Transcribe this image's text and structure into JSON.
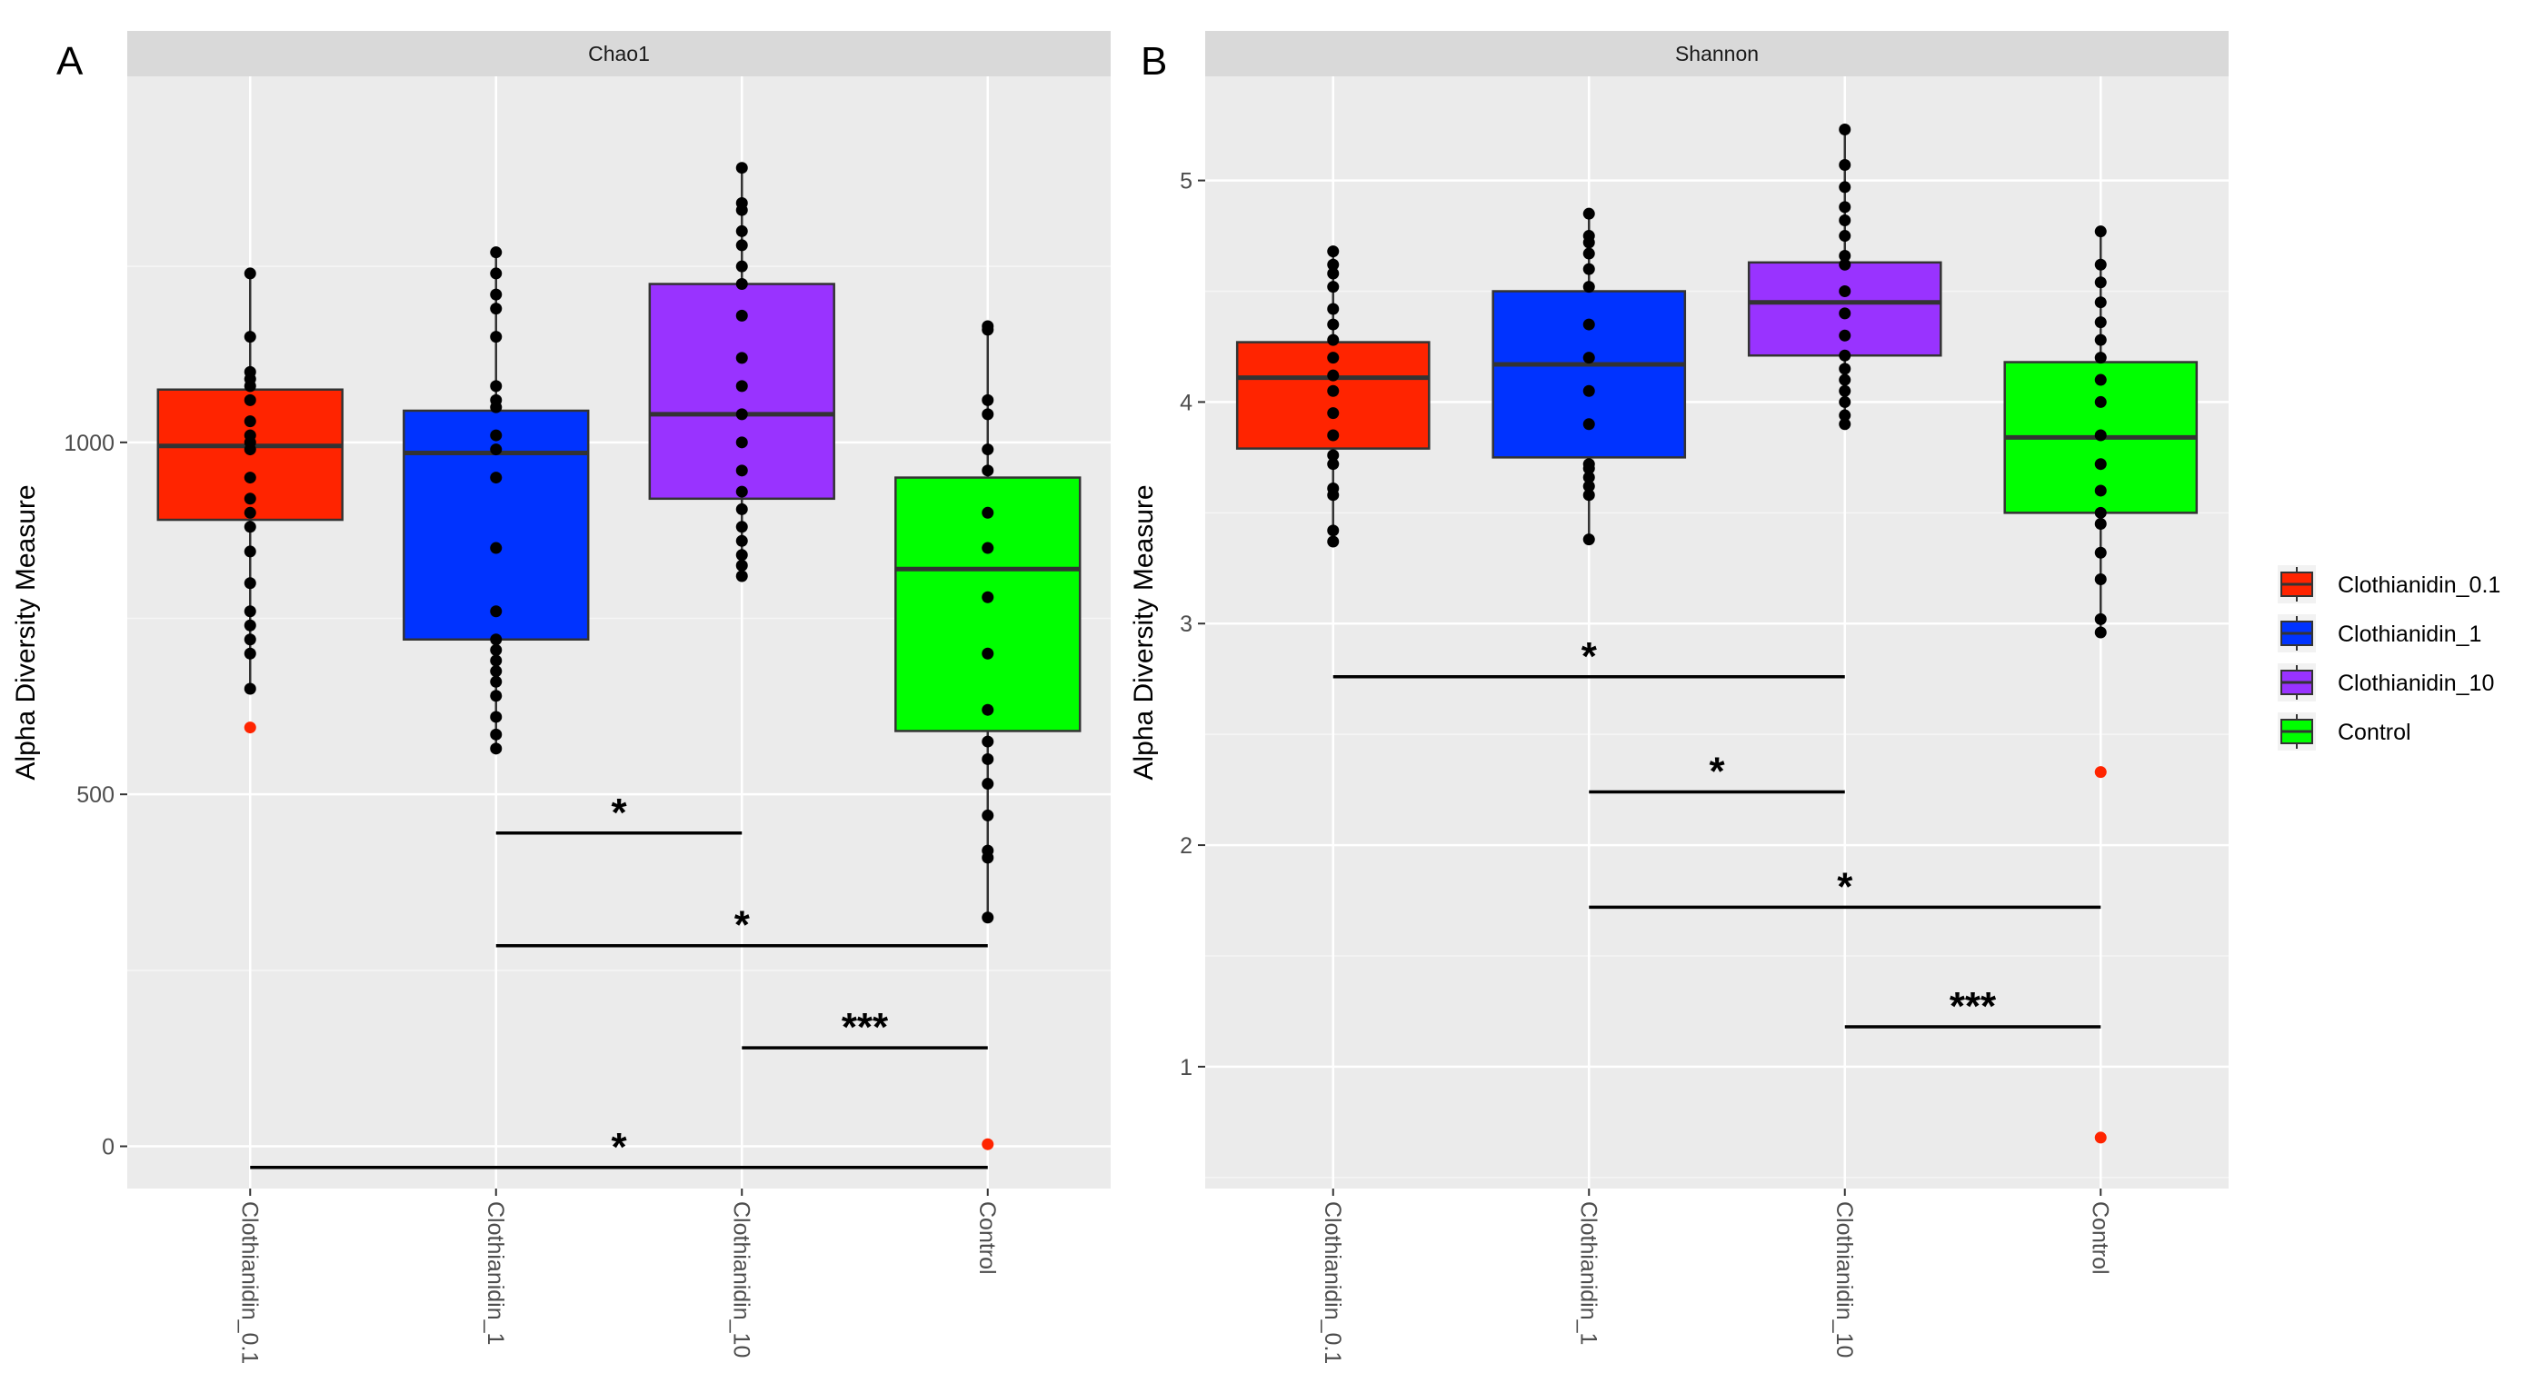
{
  "chart_data": [
    {
      "type": "boxplot",
      "panel_label": "A",
      "title": "Chao1",
      "ylabel": "Alpha Diversity Measure",
      "xlabel": "",
      "ylim": [
        -60,
        1520
      ],
      "yticks": [
        0,
        500,
        1000
      ],
      "grid": true,
      "categories": [
        "Clothianidin_0.1",
        "Clothianidin_1",
        "Clothianidin_10",
        "Control"
      ],
      "boxes": [
        {
          "name": "Clothianidin_0.1",
          "color": "#FF2400",
          "q1": 890,
          "median": 995,
          "q3": 1075,
          "whisker_low": 650,
          "whisker_high": 1240,
          "points": [
            650,
            700,
            720,
            740,
            760,
            800,
            845,
            880,
            900,
            920,
            950,
            990,
            1000,
            1010,
            1030,
            1060,
            1080,
            1090,
            1100,
            1150,
            1240
          ],
          "outliers": [
            595
          ]
        },
        {
          "name": "Clothianidin_1",
          "color": "#0033FF",
          "q1": 720,
          "median": 985,
          "q3": 1045,
          "whisker_low": 565,
          "whisker_high": 1270,
          "points": [
            565,
            585,
            610,
            640,
            660,
            675,
            690,
            705,
            720,
            760,
            850,
            950,
            990,
            1010,
            1050,
            1060,
            1080,
            1150,
            1190,
            1210,
            1240,
            1270
          ],
          "outliers": []
        },
        {
          "name": "Clothianidin_10",
          "color": "#9933FF",
          "q1": 920,
          "median": 1040,
          "q3": 1225,
          "whisker_low": 810,
          "whisker_high": 1390,
          "points": [
            810,
            825,
            840,
            860,
            880,
            905,
            930,
            960,
            1000,
            1040,
            1080,
            1120,
            1180,
            1225,
            1250,
            1280,
            1300,
            1330,
            1340,
            1390
          ],
          "outliers": []
        },
        {
          "name": "Control",
          "color": "#00FF00",
          "q1": 590,
          "median": 820,
          "q3": 950,
          "whisker_low": 325,
          "whisker_high": 1165,
          "points": [
            325,
            410,
            420,
            470,
            515,
            550,
            575,
            620,
            700,
            780,
            850,
            900,
            960,
            990,
            1040,
            1060,
            1160,
            1165
          ],
          "outliers": [
            3
          ]
        }
      ],
      "significance": [
        {
          "from": "Clothianidin_1",
          "to": "Clothianidin_10",
          "y": 445,
          "label": "*"
        },
        {
          "from": "Clothianidin_1",
          "to": "Control",
          "y": 285,
          "label": "*"
        },
        {
          "from": "Clothianidin_10",
          "to": "Control",
          "y": 140,
          "label": "***"
        },
        {
          "from": "Clothianidin_0.1",
          "to": "Control",
          "y": -30,
          "label": "*"
        }
      ]
    },
    {
      "type": "boxplot",
      "panel_label": "B",
      "title": "Shannon",
      "ylabel": "Alpha Diversity Measure",
      "xlabel": "",
      "ylim": [
        0.45,
        5.47
      ],
      "yticks": [
        1,
        2,
        3,
        4,
        5
      ],
      "grid": true,
      "categories": [
        "Clothianidin_0.1",
        "Clothianidin_1",
        "Clothianidin_10",
        "Control"
      ],
      "boxes": [
        {
          "name": "Clothianidin_0.1",
          "color": "#FF2400",
          "q1": 3.79,
          "median": 4.11,
          "q3": 4.27,
          "whisker_low": 3.37,
          "whisker_high": 4.68,
          "points": [
            3.37,
            3.42,
            3.58,
            3.61,
            3.72,
            3.76,
            3.85,
            3.95,
            4.05,
            4.12,
            4.2,
            4.28,
            4.35,
            4.42,
            4.52,
            4.58,
            4.62,
            4.68
          ],
          "outliers": []
        },
        {
          "name": "Clothianidin_1",
          "color": "#0033FF",
          "q1": 3.75,
          "median": 4.17,
          "q3": 4.5,
          "whisker_low": 3.38,
          "whisker_high": 4.85,
          "points": [
            3.38,
            3.58,
            3.62,
            3.66,
            3.7,
            3.72,
            3.9,
            4.05,
            4.2,
            4.35,
            4.52,
            4.6,
            4.67,
            4.72,
            4.75,
            4.85
          ],
          "outliers": []
        },
        {
          "name": "Clothianidin_10",
          "color": "#9933FF",
          "q1": 4.21,
          "median": 4.45,
          "q3": 4.63,
          "whisker_low": 3.9,
          "whisker_high": 5.23,
          "points": [
            3.9,
            3.94,
            4.0,
            4.05,
            4.1,
            4.15,
            4.21,
            4.3,
            4.4,
            4.5,
            4.62,
            4.66,
            4.75,
            4.82,
            4.88,
            4.97,
            5.07,
            5.23
          ],
          "outliers": []
        },
        {
          "name": "Control",
          "color": "#00FF00",
          "q1": 3.5,
          "median": 3.84,
          "q3": 4.18,
          "whisker_low": 2.96,
          "whisker_high": 4.77,
          "points": [
            2.96,
            3.02,
            3.2,
            3.32,
            3.45,
            3.5,
            3.6,
            3.72,
            3.85,
            4.0,
            4.1,
            4.2,
            4.28,
            4.36,
            4.45,
            4.54,
            4.62,
            4.77
          ],
          "outliers": [
            2.33,
            0.68
          ]
        }
      ],
      "significance": [
        {
          "from": "Clothianidin_0.1",
          "to": "Clothianidin_10",
          "y": 2.76,
          "label": "*"
        },
        {
          "from": "Clothianidin_1",
          "to": "Clothianidin_10",
          "y": 2.24,
          "label": "*"
        },
        {
          "from": "Clothianidin_1",
          "to": "Control",
          "y": 1.72,
          "label": "*"
        },
        {
          "from": "Clothianidin_10",
          "to": "Control",
          "y": 1.18,
          "label": "***"
        }
      ]
    }
  ],
  "legend": {
    "placement": "right",
    "items": [
      {
        "label": "Clothianidin_0.1",
        "color": "#FF2400"
      },
      {
        "label": "Clothianidin_1",
        "color": "#0033FF"
      },
      {
        "label": "Clothianidin_10",
        "color": "#9933FF"
      },
      {
        "label": "Control",
        "color": "#00FF00"
      }
    ]
  },
  "style": {
    "panel_bg": "#EBEBEB",
    "strip_bg": "#D9D9D9",
    "grid_major": "#FFFFFF",
    "point_color": "#000000",
    "outlier_color": "#FF2400"
  }
}
